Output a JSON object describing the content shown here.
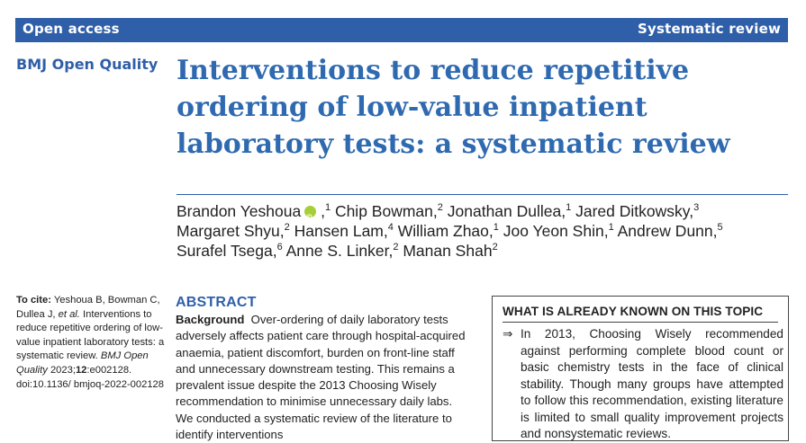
{
  "header": {
    "left": "Open access",
    "right": "Systematic review"
  },
  "journal": "BMJ Open Quality",
  "title": "Interventions to reduce repetitive ordering of low-value inpatient laboratory tests: a systematic review",
  "orcid_text": "iD",
  "authors": [
    {
      "name": "Brandon Yeshoua",
      "aff": "1"
    },
    {
      "name": "Chip Bowman",
      "aff": "2"
    },
    {
      "name": "Jonathan Dullea",
      "aff": "1"
    },
    {
      "name": "Jared Ditkowsky",
      "aff": "3"
    },
    {
      "name": "Margaret Shyu",
      "aff": "2"
    },
    {
      "name": "Hansen Lam",
      "aff": "4"
    },
    {
      "name": "William Zhao",
      "aff": "1"
    },
    {
      "name": "Joo Yeon Shin",
      "aff": "1"
    },
    {
      "name": "Andrew Dunn",
      "aff": "5"
    },
    {
      "name": "Surafel Tsega",
      "aff": "6"
    },
    {
      "name": "Anne S. Linker",
      "aff": "2"
    },
    {
      "name": "Manan Shah",
      "aff": "2"
    }
  ],
  "citation": {
    "label": "To cite:",
    "lead": "Yeshoua B, Bowman C, Dullea J,",
    "etal": "et al.",
    "body": "Interventions to reduce repetitive ordering of low-value inpatient laboratory tests: a systematic review.",
    "journal": "BMJ Open Quality",
    "year": "2023;",
    "volume": "12",
    "rest": ":e002128. doi:10.1136/ bmjoq-2022-002128"
  },
  "abstract": {
    "heading": "ABSTRACT",
    "background_label": "Background",
    "background_text": "Over-ordering of daily laboratory tests adversely affects patient care through hospital-acquired anaemia, patient discomfort, burden on front-line staff and unnecessary downstream testing. This remains a prevalent issue despite the 2013 Choosing Wisely recommendation to minimise unnecessary daily labs. We conducted a systematic review of the literature to identify interventions"
  },
  "known_box": {
    "heading": "WHAT IS ALREADY KNOWN ON THIS TOPIC",
    "arrow": "⇒",
    "text": "In 2013, Choosing Wisely recommended against performing complete blood count or basic chemistry tests in the face of clinical stability. Though many groups have attempted to follow this recommendation, existing literature is limited to small quality improvement projects and nonsystematic reviews."
  }
}
